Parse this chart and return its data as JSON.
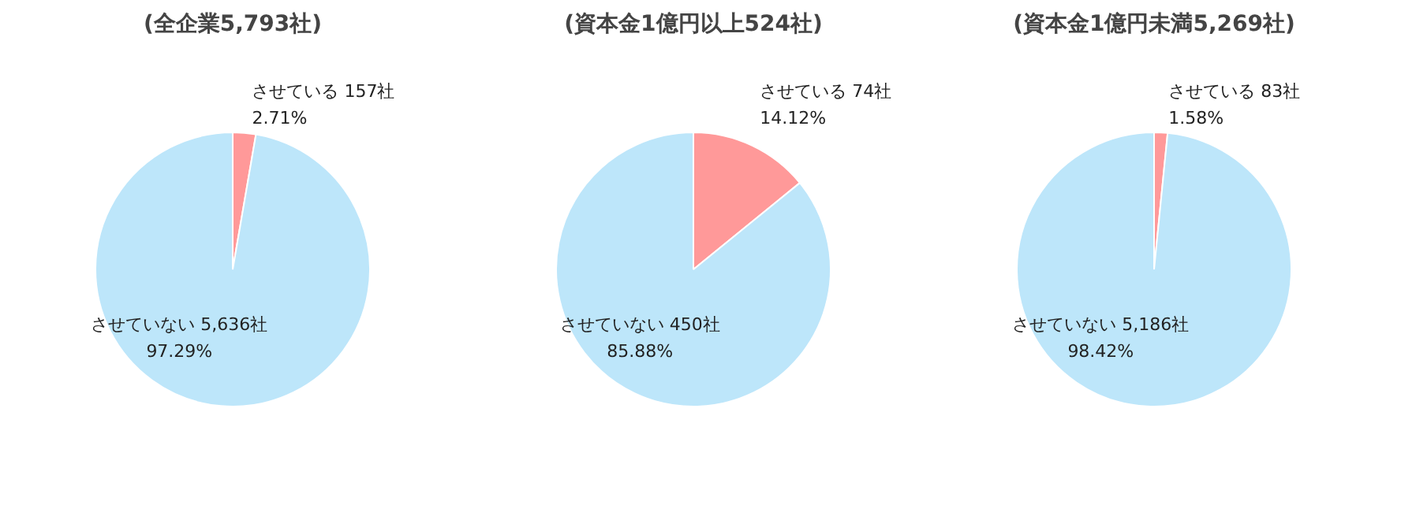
{
  "chart_data": [
    {
      "type": "pie",
      "title": "(全企業5,793社)",
      "categories": [
        "させている",
        "させていない"
      ],
      "values": [
        157,
        5636
      ],
      "colors": [
        "#ff9999",
        "#bde6fa"
      ],
      "value_labels": [
        "157社\n2.71%",
        "5,636社\n97.29%"
      ]
    },
    {
      "type": "pie",
      "title": "(資本金1億円以上524社)",
      "categories": [
        "させている",
        "させていない"
      ],
      "values": [
        74,
        450
      ],
      "colors": [
        "#ff9999",
        "#bde6fa"
      ],
      "value_labels": [
        "74社\n14.12%",
        "450社\n85.88%"
      ]
    },
    {
      "type": "pie",
      "title": "(資本金1億円未満5,269社)",
      "categories": [
        "させている",
        "させていない"
      ],
      "values": [
        83,
        5186
      ],
      "colors": [
        "#ff9999",
        "#bde6fa"
      ],
      "value_labels": [
        "83社\n1.58%",
        "5,186社\n98.42%"
      ]
    }
  ]
}
